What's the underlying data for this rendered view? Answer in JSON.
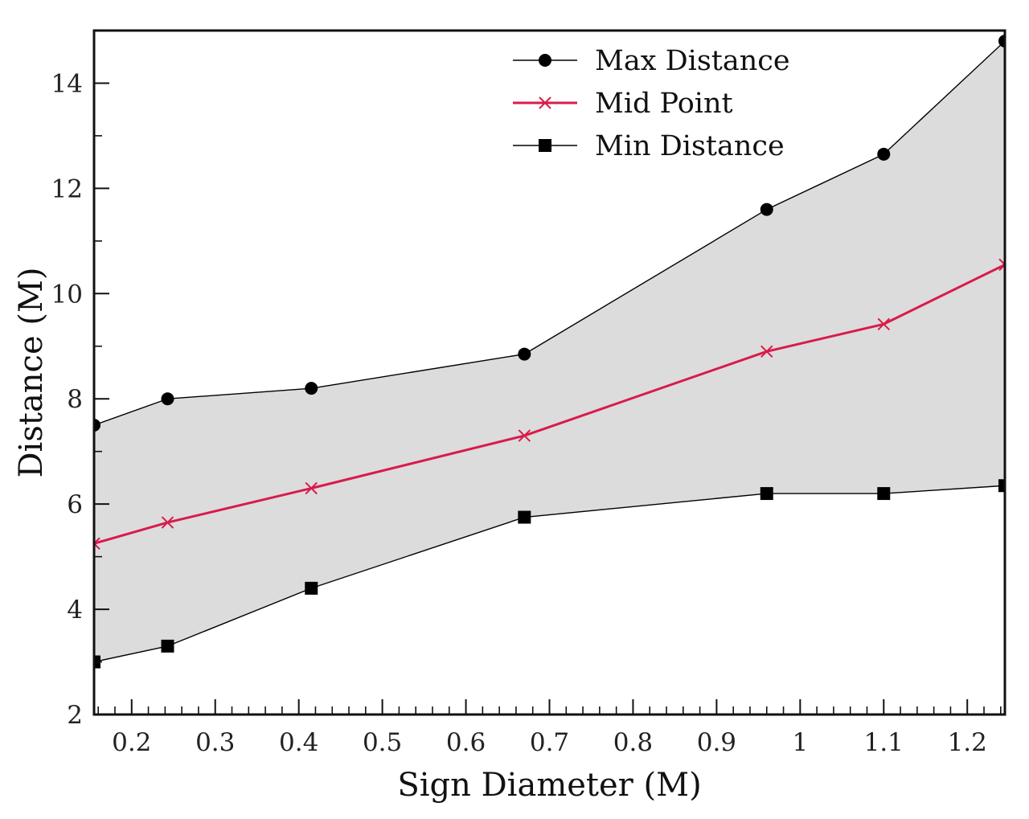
{
  "chart_data": {
    "type": "line",
    "title": "",
    "xlabel": "Sign Diameter (M)",
    "ylabel": "Distance (M)",
    "xlim": [
      0.155,
      1.245
    ],
    "ylim": [
      2,
      15
    ],
    "x_ticks": [
      0.2,
      0.3,
      0.4,
      0.5,
      0.6,
      0.7,
      0.8,
      0.9,
      1.0,
      1.1,
      1.2
    ],
    "x_tick_labels": [
      "0.2",
      "0.3",
      "0.4",
      "0.5",
      "0.6",
      "0.7",
      "0.8",
      "0.9",
      "1",
      "1.1",
      "1.2"
    ],
    "y_ticks": [
      2,
      4,
      6,
      8,
      10,
      12,
      14
    ],
    "y_tick_labels": [
      "2",
      "4",
      "6",
      "8",
      "10",
      "12",
      "14"
    ],
    "grid": false,
    "legend_position": "top-right",
    "shaded_band": {
      "between": [
        "Max Distance",
        "Min Distance"
      ],
      "color": "#dcdcdc"
    },
    "x": [
      0.155,
      0.243,
      0.415,
      0.67,
      0.96,
      1.1,
      1.245
    ],
    "series": [
      {
        "name": "Max Distance",
        "marker": "circle",
        "color": "#000000",
        "values": [
          7.5,
          8.0,
          8.2,
          8.85,
          11.6,
          12.65,
          14.8
        ]
      },
      {
        "name": "Mid Point",
        "marker": "x",
        "color": "#d81b4a",
        "values": [
          5.25,
          5.65,
          6.3,
          7.3,
          8.9,
          9.42,
          10.55
        ]
      },
      {
        "name": "Min Distance",
        "marker": "square",
        "color": "#000000",
        "values": [
          3.0,
          3.3,
          4.4,
          5.75,
          6.2,
          6.2,
          6.35
        ]
      }
    ]
  }
}
